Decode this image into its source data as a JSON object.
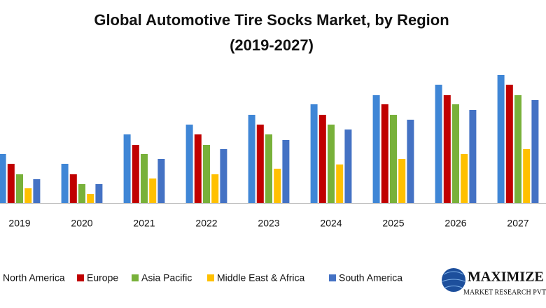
{
  "chart_data": {
    "type": "bar",
    "title": "Global Automotive Tire Socks Market, by Region",
    "subtitle": "(2019-2027)",
    "categories": [
      "2019",
      "2020",
      "2021",
      "2022",
      "2023",
      "2024",
      "2025",
      "2026",
      "2027"
    ],
    "series": [
      {
        "name": "North America",
        "color": "#3f86d6",
        "values": [
          70,
          56,
          98,
          112,
          126,
          141,
          154,
          169,
          183
        ]
      },
      {
        "name": "Europe",
        "color": "#c00000",
        "values": [
          56,
          41,
          83,
          98,
          112,
          126,
          141,
          154,
          169
        ]
      },
      {
        "name": "Asia Pacific",
        "color": "#78b13a",
        "values": [
          41,
          27,
          70,
          83,
          98,
          112,
          126,
          141,
          154
        ]
      },
      {
        "name": "Middle East & Africa",
        "color": "#ffc000",
        "values": [
          21,
          13,
          35,
          41,
          49,
          55,
          63,
          70,
          77
        ]
      },
      {
        "name": "South America",
        "color": "#4472c4",
        "values": [
          34,
          27,
          63,
          77,
          90,
          105,
          119,
          133,
          147
        ]
      }
    ],
    "ylim": [
      0,
      183
    ]
  },
  "logo": {
    "name": "MAXIMIZE",
    "tagline": "MARKET RESEARCH PVT."
  }
}
